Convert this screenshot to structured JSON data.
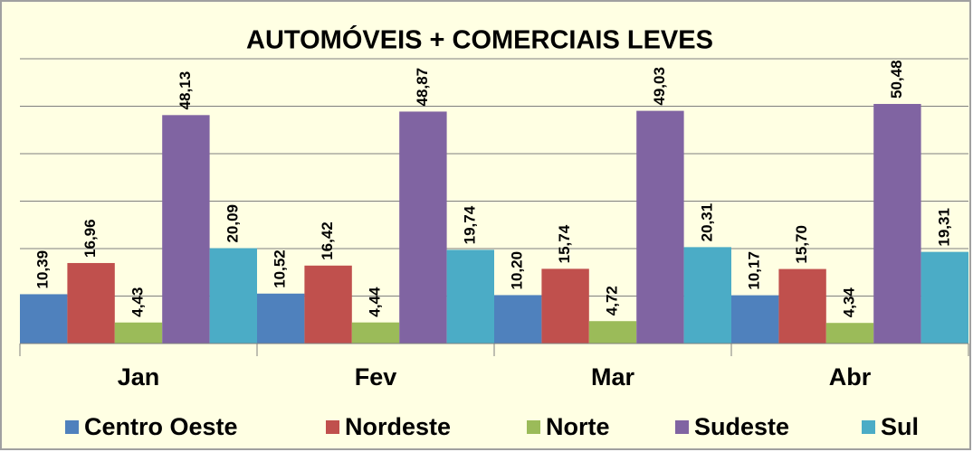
{
  "chart_data": {
    "type": "bar",
    "title": "AUTOMÓVEIS  + COMERCIAIS  LEVES",
    "categories": [
      "Jan",
      "Fev",
      "Mar",
      "Abr"
    ],
    "series": [
      {
        "name": "Centro Oeste",
        "color": "#4f81bd",
        "values": [
          10.39,
          10.52,
          10.2,
          10.17
        ],
        "value_labels": [
          "10,39",
          "10,52",
          "10,20",
          "10,17"
        ]
      },
      {
        "name": "Nordeste",
        "color": "#c0504d",
        "values": [
          16.96,
          16.42,
          15.74,
          15.7
        ],
        "value_labels": [
          "16,96",
          "16,42",
          "15,74",
          "15,70"
        ]
      },
      {
        "name": "Norte",
        "color": "#9bbb59",
        "values": [
          4.43,
          4.44,
          4.72,
          4.34
        ],
        "value_labels": [
          "4,43",
          "4,44",
          "4,72",
          "4,34"
        ]
      },
      {
        "name": "Sudeste",
        "color": "#8064a2",
        "values": [
          48.13,
          48.87,
          49.03,
          50.48
        ],
        "value_labels": [
          "48,13",
          "48,87",
          "49,03",
          "50,48"
        ]
      },
      {
        "name": "Sul",
        "color": "#4bacc6",
        "values": [
          20.09,
          19.74,
          20.31,
          19.31
        ],
        "value_labels": [
          "20,09",
          "19,74",
          "20,31",
          "19,31"
        ]
      }
    ],
    "ylim": [
      0,
      60
    ],
    "yticks": [
      0,
      10,
      20,
      30,
      40,
      50,
      60
    ],
    "grid": true,
    "legend": "bottom"
  }
}
